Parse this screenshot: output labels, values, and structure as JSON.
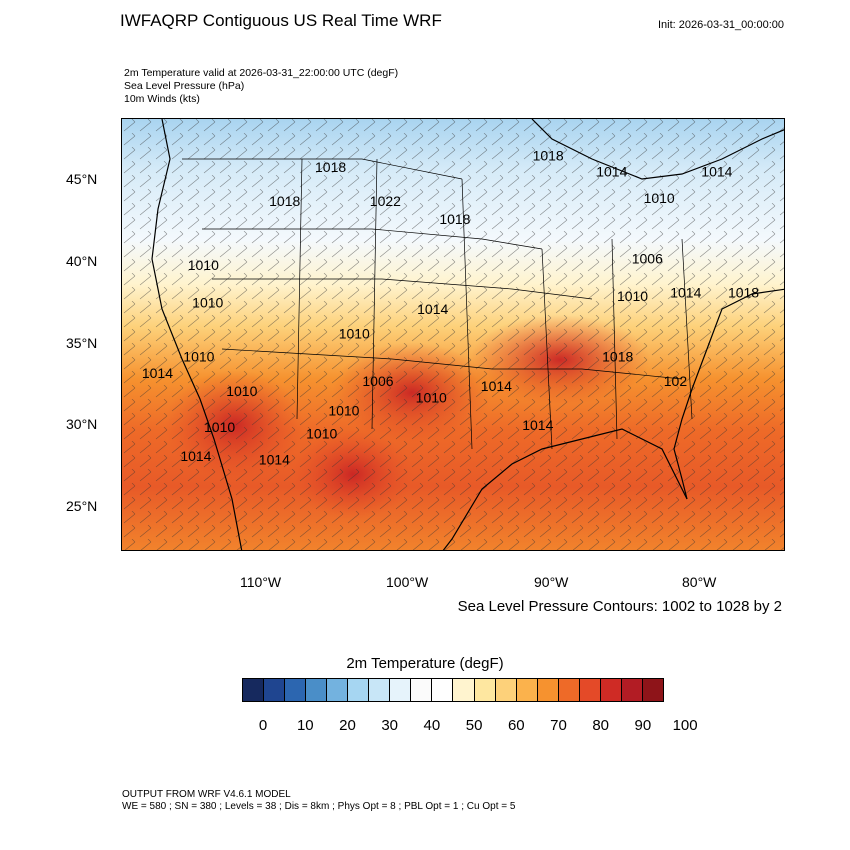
{
  "header": {
    "title": "IWFAQRP Contiguous US Real Time WRF",
    "init": "Init: 2026-03-31_00:00:00",
    "field_lines": [
      "2m Temperature valid at 2026-03-31_22:00:00 UTC   (degF)",
      "Sea Level Pressure   (hPa)",
      "10m Winds   (kts)"
    ]
  },
  "map": {
    "lat_labels": [
      "45°N",
      "40°N",
      "35°N",
      "30°N",
      "25°N"
    ],
    "lon_labels": [
      "110°W",
      "100°W",
      "90°W",
      "80°W"
    ],
    "isobar_labels": [
      {
        "text": "1018",
        "lon": -105.5,
        "lat": 45.5
      },
      {
        "text": "1018",
        "lon": -108.6,
        "lat": 43.4
      },
      {
        "text": "1022",
        "lon": -101.8,
        "lat": 43.4
      },
      {
        "text": "1018",
        "lon": -97.1,
        "lat": 42.3
      },
      {
        "text": "1018",
        "lon": -90.8,
        "lat": 46.2
      },
      {
        "text": "1014",
        "lon": -86.5,
        "lat": 45.2
      },
      {
        "text": "1014",
        "lon": -79.4,
        "lat": 45.2
      },
      {
        "text": "1010",
        "lon": -83.3,
        "lat": 43.6
      },
      {
        "text": "1006",
        "lon": -84.1,
        "lat": 39.9
      },
      {
        "text": "1010",
        "lon": -85.1,
        "lat": 37.6
      },
      {
        "text": "1014",
        "lon": -81.5,
        "lat": 37.8
      },
      {
        "text": "1018",
        "lon": -77.6,
        "lat": 37.8
      },
      {
        "text": "1010",
        "lon": -114.1,
        "lat": 39.5
      },
      {
        "text": "1010",
        "lon": -113.8,
        "lat": 37.2
      },
      {
        "text": "1014",
        "lon": -98.6,
        "lat": 36.8
      },
      {
        "text": "1010",
        "lon": -103.9,
        "lat": 35.3
      },
      {
        "text": "1010",
        "lon": -114.4,
        "lat": 33.9
      },
      {
        "text": "1014",
        "lon": -117.2,
        "lat": 32.9
      },
      {
        "text": "1010",
        "lon": -111.5,
        "lat": 31.8
      },
      {
        "text": "1006",
        "lon": -102.3,
        "lat": 32.4
      },
      {
        "text": "1010",
        "lon": -98.7,
        "lat": 31.4
      },
      {
        "text": "1014",
        "lon": -94.3,
        "lat": 32.1
      },
      {
        "text": "1010",
        "lon": -104.6,
        "lat": 30.6
      },
      {
        "text": "1010",
        "lon": -113.0,
        "lat": 29.6
      },
      {
        "text": "1014",
        "lon": -91.5,
        "lat": 29.7
      },
      {
        "text": "1018",
        "lon": -86.1,
        "lat": 33.9
      },
      {
        "text": "102",
        "lon": -82.2,
        "lat": 32.4
      },
      {
        "text": "1014",
        "lon": -114.6,
        "lat": 27.8
      },
      {
        "text": "1010",
        "lon": -106.1,
        "lat": 29.2
      },
      {
        "text": "1014",
        "lon": -109.3,
        "lat": 27.6
      }
    ]
  },
  "contour_note": "Sea Level Pressure Contours: 1002 to 1028 by 2",
  "colorbar": {
    "title": "2m Temperature  (degF)",
    "colors": [
      "#16295e",
      "#1f4590",
      "#2c66b0",
      "#4a8ec8",
      "#73b2df",
      "#a6d6f2",
      "#c8e6f7",
      "#e6f3fb",
      "#fbfbfb",
      "#ffffff",
      "#fff4cf",
      "#fee7a0",
      "#fdd17a",
      "#fbb24c",
      "#f6922f",
      "#ee6a28",
      "#e44a28",
      "#cf2b25",
      "#b21c24",
      "#8e1419"
    ],
    "labels": [
      "0",
      "10",
      "20",
      "30",
      "40",
      "50",
      "60",
      "70",
      "80",
      "90",
      "100"
    ]
  },
  "footer": {
    "line1": "OUTPUT FROM WRF V4.6.1 MODEL",
    "line2": "WE = 580 ; SN = 380 ; Levels = 38 ; Dis = 8km ; Phys Opt = 8 ; PBL Opt = 1 ; Cu Opt = 5"
  }
}
